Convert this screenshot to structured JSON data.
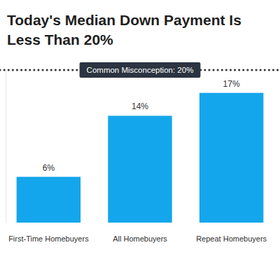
{
  "chart_data": {
    "type": "bar",
    "title": "Today's Median Down Payment Is Less Than 20%",
    "categories": [
      "First-Time Homebuyers",
      "All Homebuyers",
      "Repeat Homebuyers"
    ],
    "values": [
      6,
      14,
      17
    ],
    "value_labels": [
      "6%",
      "14%",
      "17%"
    ],
    "color": "#14a6ec",
    "ylim": [
      0,
      20
    ],
    "yticks": [
      0,
      20
    ],
    "grid": false,
    "data_labels": true,
    "tick_labels": "x",
    "reference_line": {
      "value": 20,
      "label": "Common Misconception: 20%"
    }
  }
}
